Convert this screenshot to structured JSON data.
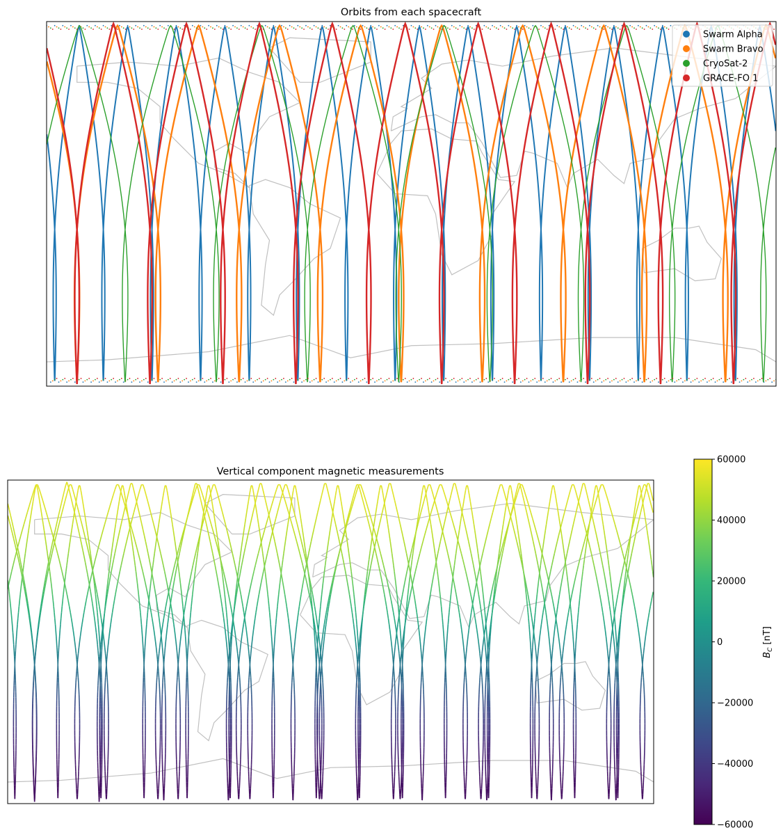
{
  "chart_data": [
    {
      "type": "line",
      "title": "Orbits from each spacecraft",
      "projection": "plate-carree",
      "lon_range": [
        -180,
        180
      ],
      "lat_range": [
        -90,
        90
      ],
      "coastlines": true,
      "coastline_color": "#c0c0c0",
      "legend_placement": "top-right",
      "series": [
        {
          "name": "Swarm Alpha",
          "color": "#1f77b4",
          "orbits": 15,
          "max_lat": 87.4
        },
        {
          "name": "Swarm Bravo",
          "color": "#ff7f0e",
          "orbits": 9,
          "max_lat": 88.0
        },
        {
          "name": "CryoSat-2",
          "color": "#2ca02c",
          "orbits": 8,
          "max_lat": 88.0
        },
        {
          "name": "GRACE-FO 1",
          "color": "#d62728",
          "orbits": 10,
          "max_lat": 89.0
        }
      ]
    },
    {
      "type": "scatter",
      "title": "Vertical component magnetic measurements",
      "projection": "plate-carree",
      "lon_range": [
        -180,
        180
      ],
      "lat_range": [
        -90,
        90
      ],
      "coastlines": true,
      "colormap": "viridis",
      "colorbar": {
        "label": "B_C [nT]",
        "label_main": "B",
        "label_sub": "C",
        "label_unit": " [nT]",
        "range": [
          -60000,
          60000
        ],
        "ticks": [
          "60000",
          "40000",
          "20000",
          "0",
          "−20000",
          "−40000",
          "−60000"
        ],
        "tick_values": [
          60000,
          40000,
          20000,
          0,
          -20000,
          -40000,
          -60000
        ]
      },
      "value_at_north_pole": 55000,
      "value_at_south_pole": -55000
    }
  ]
}
